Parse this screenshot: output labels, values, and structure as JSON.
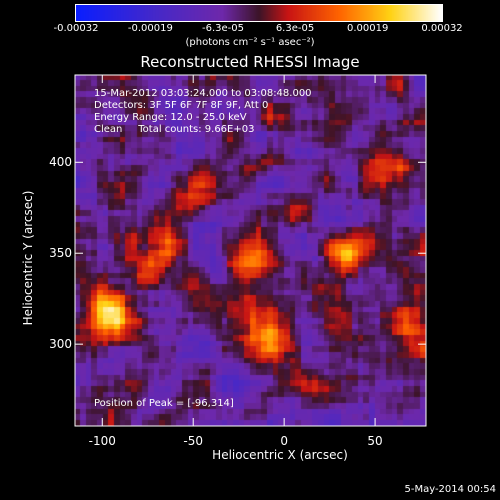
{
  "colorbar": {
    "tick_labels": [
      "-0.00032",
      "-0.00019",
      "-6.3e-05",
      "6.3e-05",
      "0.00019",
      "0.00032"
    ],
    "unit_label": "(photons cm⁻² s⁻¹ asec⁻²)"
  },
  "chart_data": {
    "type": "heatmap",
    "title": "Reconstructed RHESSI Image",
    "xlabel": "Heliocentric X (arcsec)",
    "ylabel": "Heliocentric Y (arcsec)",
    "xlim": [
      -115,
      78
    ],
    "ylim": [
      255,
      448
    ],
    "x_ticks": [
      -100,
      -50,
      0,
      50
    ],
    "y_ticks": [
      300,
      350,
      400
    ],
    "color_range": [
      -0.00032,
      0.00032
    ],
    "colormap": "blue-purple-red-yellow-white",
    "annotations": {
      "time_range": "15-Mar-2012 03:03:24.000 to 03:08:48.000",
      "detectors": "Detectors: 3F 5F 6F 7F 8F 9F, Att 0",
      "energy_range": "Energy Range: 12.0 - 25.0 keV",
      "clean": "Clean     Total counts: 9.66E+03",
      "peak": "Position of Peak = [-96,314]"
    },
    "peak_position": [
      -96,
      314
    ],
    "bright_sources": [
      {
        "x": -96,
        "y": 314,
        "intensity": 0.00032
      },
      {
        "x": -18,
        "y": 345,
        "intensity": 0.00028
      },
      {
        "x": -10,
        "y": 300,
        "intensity": 0.00026
      },
      {
        "x": 36,
        "y": 352,
        "intensity": 0.0002
      },
      {
        "x": 60,
        "y": 395,
        "intensity": 0.00016
      },
      {
        "x": -65,
        "y": 350,
        "intensity": 0.00018
      },
      {
        "x": -50,
        "y": 385,
        "intensity": 0.00014
      },
      {
        "x": 70,
        "y": 310,
        "intensity": 0.00017
      }
    ]
  },
  "footer": {
    "date": "5-May-2014 00:54"
  }
}
